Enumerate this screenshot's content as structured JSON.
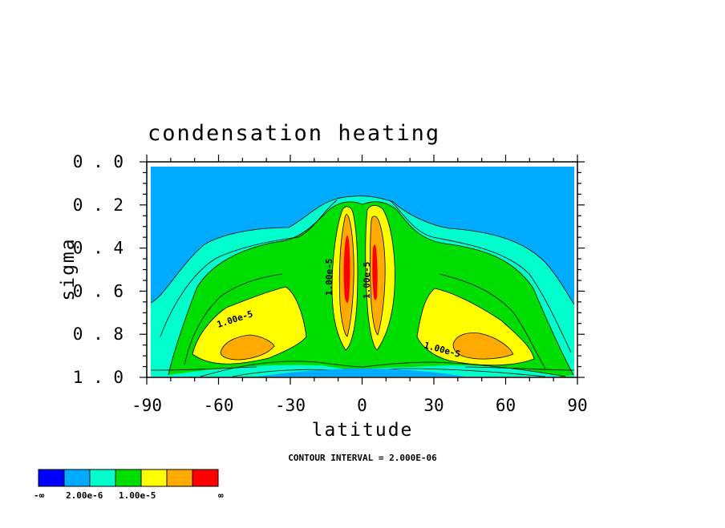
{
  "chart_data": {
    "type": "contour",
    "title": "condensation heating",
    "xlabel": "latitude",
    "ylabel": "sigma",
    "xlim": [
      -90,
      90
    ],
    "ylim": [
      1.0,
      0.0
    ],
    "x_ticks": [
      "-90",
      "-60",
      "-30",
      "0",
      "30",
      "60",
      "90"
    ],
    "y_ticks": [
      "0.0",
      "0.2",
      "0.4",
      "0.6",
      "0.8",
      "1.0"
    ],
    "contour_interval_text": "CONTOUR INTERVAL = 2.000E-06",
    "contour_labels": [
      "1.00e-5",
      "1.00e-5",
      "1.00e-5",
      "1.00e-5"
    ],
    "legend": {
      "labels": [
        "-∞",
        "2.00e-6",
        "1.00e-5",
        "∞"
      ],
      "colors": [
        "#0000ff",
        "#00aaff",
        "#00ffcc",
        "#00dd00",
        "#ffff00",
        "#ffaa00",
        "#ff0000"
      ]
    },
    "levels": [
      {
        "level": 1,
        "color": "#00aaff",
        "note": "background"
      },
      {
        "level": 2,
        "color": "#00ffcc"
      },
      {
        "level": 3,
        "color": "#00dd00"
      },
      {
        "level": 4,
        "color": "#ffff00"
      },
      {
        "level": 5,
        "color": "#ffaa00"
      },
      {
        "level": 6,
        "color": "#ff0000"
      }
    ],
    "features": [
      {
        "name": "south-subtropical-max",
        "lat": -45,
        "sigma": 0.86,
        "peak_level": 5
      },
      {
        "name": "south-equatorial-column",
        "lat": -7,
        "sigma": 0.5,
        "peak_level": 6
      },
      {
        "name": "north-equatorial-column",
        "lat": 6,
        "sigma": 0.5,
        "peak_level": 6
      },
      {
        "name": "north-subtropical-max",
        "lat": 48,
        "sigma": 0.86,
        "peak_level": 5
      }
    ]
  }
}
